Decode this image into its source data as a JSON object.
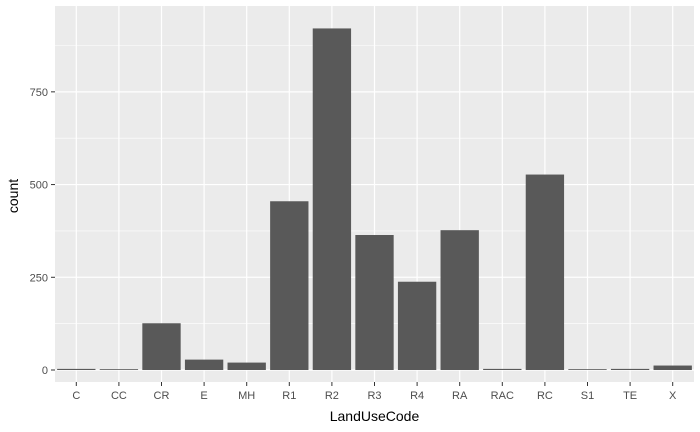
{
  "chart_data": {
    "type": "bar",
    "title": "",
    "xlabel": "LandUseCode",
    "ylabel": "count",
    "categories": [
      "C",
      "CC",
      "CR",
      "E",
      "MH",
      "R1",
      "R2",
      "R3",
      "R4",
      "RA",
      "RAC",
      "RC",
      "S1",
      "TE",
      "X"
    ],
    "values": [
      3,
      1,
      126,
      28,
      20,
      455,
      921,
      364,
      238,
      377,
      3,
      527,
      1,
      3,
      12
    ],
    "ylim": [
      0,
      968
    ],
    "yticks": [
      0,
      250,
      500,
      750
    ],
    "ytick_labels": [
      "0",
      "250",
      "500",
      "750"
    ],
    "grid": true,
    "legend": "none",
    "colors": {
      "bar": "#595959",
      "panel": "#ebebeb",
      "grid_major": "#ffffff",
      "tick_text": "#4d4d4d",
      "tick_mark": "#333333"
    }
  }
}
